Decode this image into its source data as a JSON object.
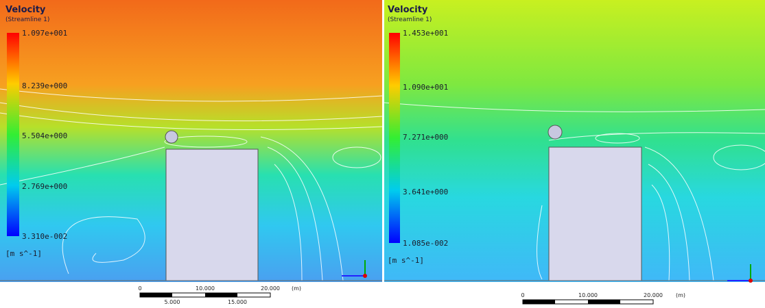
{
  "panels": [
    {
      "title": "Velocity",
      "subtitle": "(Streamline 1)",
      "legend_labels": [
        "1.097e+001",
        "8.239e+000",
        "5.504e+000",
        "2.769e+000",
        "3.310e-002"
      ],
      "unit": "[m s^-1]",
      "scale_top": [
        "0",
        "10.000",
        "20.000",
        "(m)"
      ],
      "scale_bottom": [
        "5.000",
        "15.000"
      ]
    },
    {
      "title": "Velocity",
      "subtitle": "(Streamline 1)",
      "legend_labels": [
        "1.453e+001",
        "1.090e+001",
        "7.271e+000",
        "3.641e+000",
        "1.085e-002"
      ],
      "unit": "[m s^-1]",
      "scale_top": [
        "0",
        "10.000",
        "20.000",
        "(m)"
      ]
    }
  ]
}
